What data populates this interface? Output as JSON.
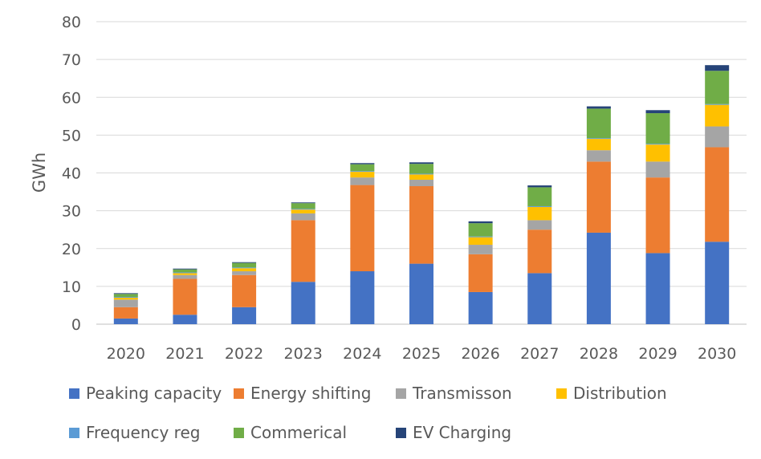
{
  "chart_data": {
    "type": "bar",
    "stacked": true,
    "title": "",
    "xlabel": "",
    "ylabel": "GWh",
    "ylim": [
      0,
      80
    ],
    "yticks": [
      0,
      10,
      20,
      30,
      40,
      50,
      60,
      70,
      80
    ],
    "grid": true,
    "legend_position": "bottom",
    "categories": [
      "2020",
      "2021",
      "2022",
      "2023",
      "2024",
      "2025",
      "2026",
      "2027",
      "2028",
      "2029",
      "2030"
    ],
    "series": [
      {
        "name": "Peaking capacity",
        "color": "#4472C4",
        "values": [
          1.5,
          2.5,
          4.5,
          11.2,
          14.0,
          16.0,
          8.5,
          13.5,
          24.2,
          18.8,
          21.8
        ]
      },
      {
        "name": "Energy shifting",
        "color": "#ED7D31",
        "values": [
          3.0,
          9.5,
          8.5,
          16.3,
          22.8,
          20.5,
          10.0,
          11.5,
          18.8,
          20.0,
          25.0
        ]
      },
      {
        "name": "Transmisson",
        "color": "#A5A5A5",
        "values": [
          2.0,
          1.0,
          1.0,
          1.8,
          2.0,
          1.7,
          2.5,
          2.5,
          3.0,
          4.2,
          5.5
        ]
      },
      {
        "name": "Distribution",
        "color": "#FFC000",
        "values": [
          0.5,
          0.5,
          0.8,
          1.0,
          1.5,
          1.4,
          2.0,
          3.5,
          3.0,
          4.5,
          5.7
        ]
      },
      {
        "name": "Frequency reg",
        "color": "#5B9BD5",
        "values": [
          0.2,
          0.2,
          0.2,
          0.2,
          0.2,
          0.2,
          0.2,
          0.2,
          0.2,
          0.2,
          0.2
        ]
      },
      {
        "name": "Commerical",
        "color": "#70AD47",
        "values": [
          0.8,
          0.8,
          1.2,
          1.5,
          1.8,
          2.6,
          3.5,
          5.0,
          7.8,
          8.1,
          8.8
        ]
      },
      {
        "name": "EV Charging",
        "color": "#264478",
        "values": [
          0.2,
          0.2,
          0.2,
          0.2,
          0.3,
          0.4,
          0.5,
          0.5,
          0.6,
          0.8,
          1.5
        ]
      }
    ]
  }
}
